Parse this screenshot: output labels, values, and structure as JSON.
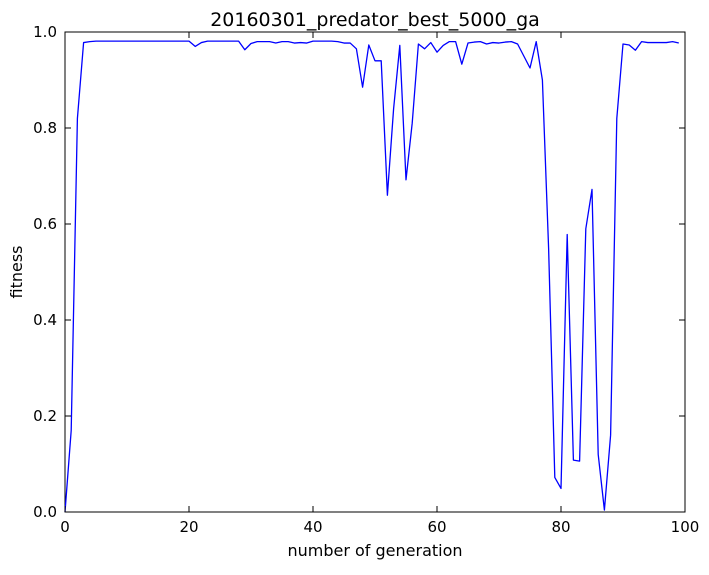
{
  "chart_data": {
    "type": "line",
    "title": "20160301_predator_best_5000_ga",
    "xlabel": "number of generation",
    "ylabel": "fitness",
    "xlim": [
      0,
      100
    ],
    "ylim": [
      0.0,
      1.0
    ],
    "xticks": [
      "0",
      "20",
      "40",
      "60",
      "80",
      "100"
    ],
    "yticks": [
      "0.0",
      "0.2",
      "0.4",
      "0.6",
      "0.8",
      "1.0"
    ],
    "grid": false,
    "legend": "none",
    "series": [
      {
        "color": "#0000ff",
        "x": [
          0,
          1,
          2,
          3,
          4,
          5,
          6,
          7,
          8,
          9,
          10,
          11,
          12,
          13,
          14,
          15,
          16,
          17,
          18,
          19,
          20,
          21,
          22,
          23,
          24,
          25,
          26,
          27,
          28,
          29,
          30,
          31,
          32,
          33,
          34,
          35,
          36,
          37,
          38,
          39,
          40,
          41,
          42,
          43,
          44,
          45,
          46,
          47,
          48,
          49,
          50,
          51,
          52,
          53,
          54,
          55,
          56,
          57,
          58,
          59,
          60,
          61,
          62,
          63,
          64,
          65,
          66,
          67,
          68,
          69,
          70,
          71,
          72,
          73,
          74,
          75,
          76,
          77,
          78,
          79,
          80,
          81,
          82,
          83,
          84,
          85,
          86,
          87,
          88,
          89,
          90,
          91,
          92,
          93,
          94,
          95,
          96,
          97,
          98,
          99
        ],
        "y": [
          0.0,
          0.17,
          0.82,
          0.978,
          0.98,
          0.981,
          0.981,
          0.981,
          0.981,
          0.981,
          0.981,
          0.981,
          0.981,
          0.981,
          0.981,
          0.981,
          0.981,
          0.981,
          0.981,
          0.981,
          0.981,
          0.97,
          0.978,
          0.981,
          0.981,
          0.981,
          0.981,
          0.981,
          0.981,
          0.963,
          0.976,
          0.98,
          0.98,
          0.98,
          0.977,
          0.98,
          0.98,
          0.977,
          0.978,
          0.977,
          0.981,
          0.981,
          0.981,
          0.981,
          0.98,
          0.977,
          0.977,
          0.965,
          0.885,
          0.973,
          0.94,
          0.94,
          0.66,
          0.84,
          0.972,
          0.692,
          0.81,
          0.975,
          0.965,
          0.978,
          0.958,
          0.972,
          0.98,
          0.98,
          0.933,
          0.977,
          0.979,
          0.98,
          0.975,
          0.978,
          0.977,
          0.979,
          0.98,
          0.975,
          0.95,
          0.925,
          0.98,
          0.9,
          0.55,
          0.072,
          0.049,
          0.578,
          0.108,
          0.106,
          0.59,
          0.672,
          0.12,
          0.004,
          0.16,
          0.82,
          0.975,
          0.973,
          0.962,
          0.98,
          0.978,
          0.978,
          0.978,
          0.978,
          0.98,
          0.977
        ]
      }
    ]
  }
}
